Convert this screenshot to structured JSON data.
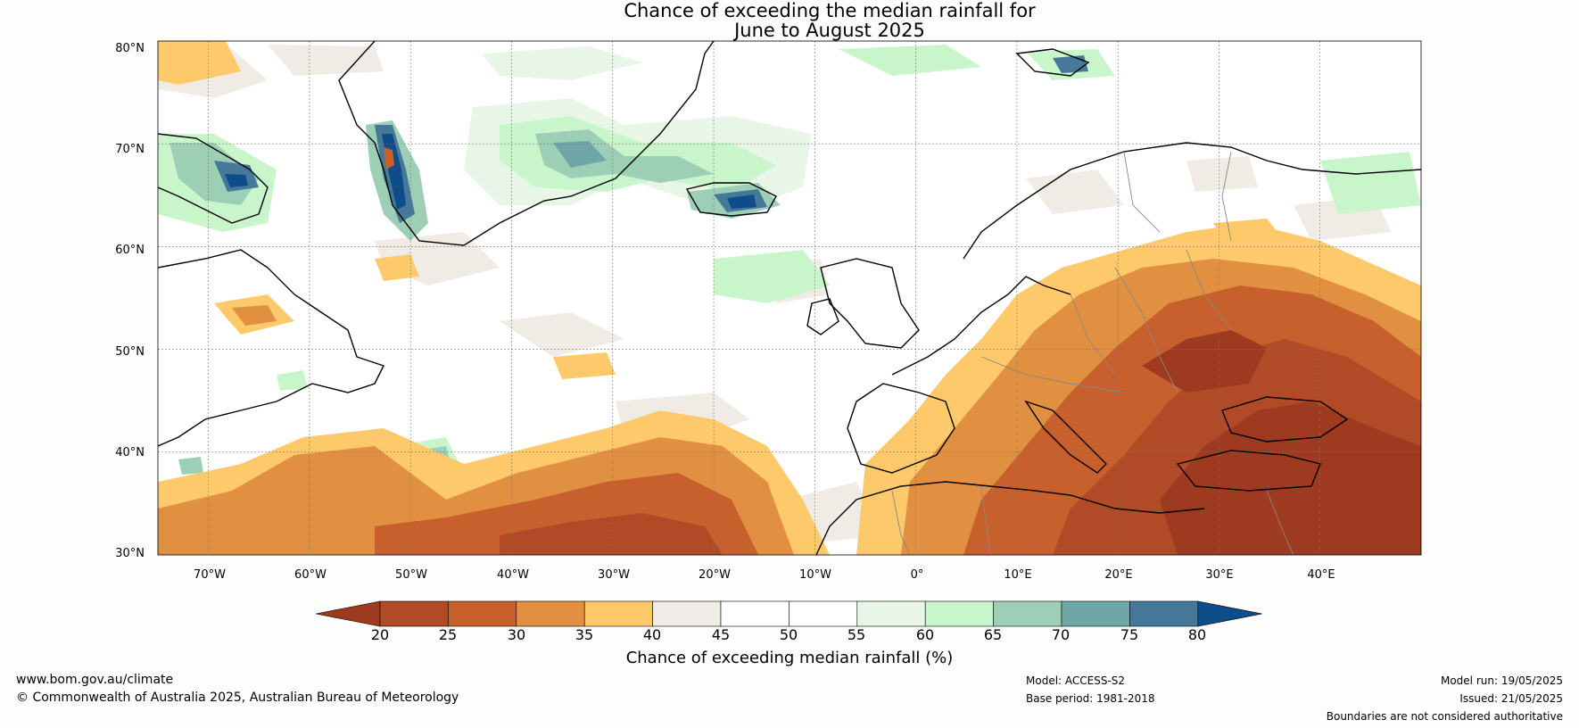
{
  "title": {
    "line1": "Chance of exceeding the median rainfall for",
    "line2": "June to August 2025"
  },
  "map": {
    "lat_range": [
      30,
      80
    ],
    "lon_range": [
      -75,
      50
    ],
    "lat_labels": [
      "30°N",
      "40°N",
      "50°N",
      "60°N",
      "70°N",
      "80°N"
    ],
    "lat_values": [
      30,
      40,
      50,
      60,
      70,
      80
    ],
    "lon_labels": [
      "70°W",
      "60°W",
      "50°W",
      "40°W",
      "30°W",
      "20°W",
      "10°W",
      "0°",
      "10°E",
      "20°E",
      "30°E",
      "40°E"
    ],
    "lon_values": [
      -70,
      -60,
      -50,
      -40,
      -30,
      -20,
      -10,
      0,
      10,
      20,
      30,
      40
    ]
  },
  "colorbar": {
    "ticks": [
      "20",
      "25",
      "30",
      "35",
      "40",
      "45",
      "50",
      "55",
      "60",
      "65",
      "70",
      "75",
      "80"
    ],
    "colors": [
      "#9e3a1f",
      "#b04a27",
      "#c8602e",
      "#e09040",
      "#fec96a",
      "#f1ebe6",
      "#ffffff",
      "#ffffff",
      "#e8f6e8",
      "#c9f5cb",
      "#9dcfb6",
      "#6fa7a8",
      "#46789a",
      "#0e4d8a"
    ],
    "label": "Chance of exceeding median rainfall (%)"
  },
  "footer": {
    "website": "www.bom.gov.au/climate",
    "copyright": "© Commonwealth of Australia 2025, Australian Bureau of Meteorology",
    "model": "Model: ACCESS-S2",
    "base_period": "Base period: 1981-2018",
    "model_run": "Model run: 19/05/2025",
    "issued": "Issued: 21/05/2025",
    "disclaimer": "Boundaries are not considered authoritative"
  }
}
